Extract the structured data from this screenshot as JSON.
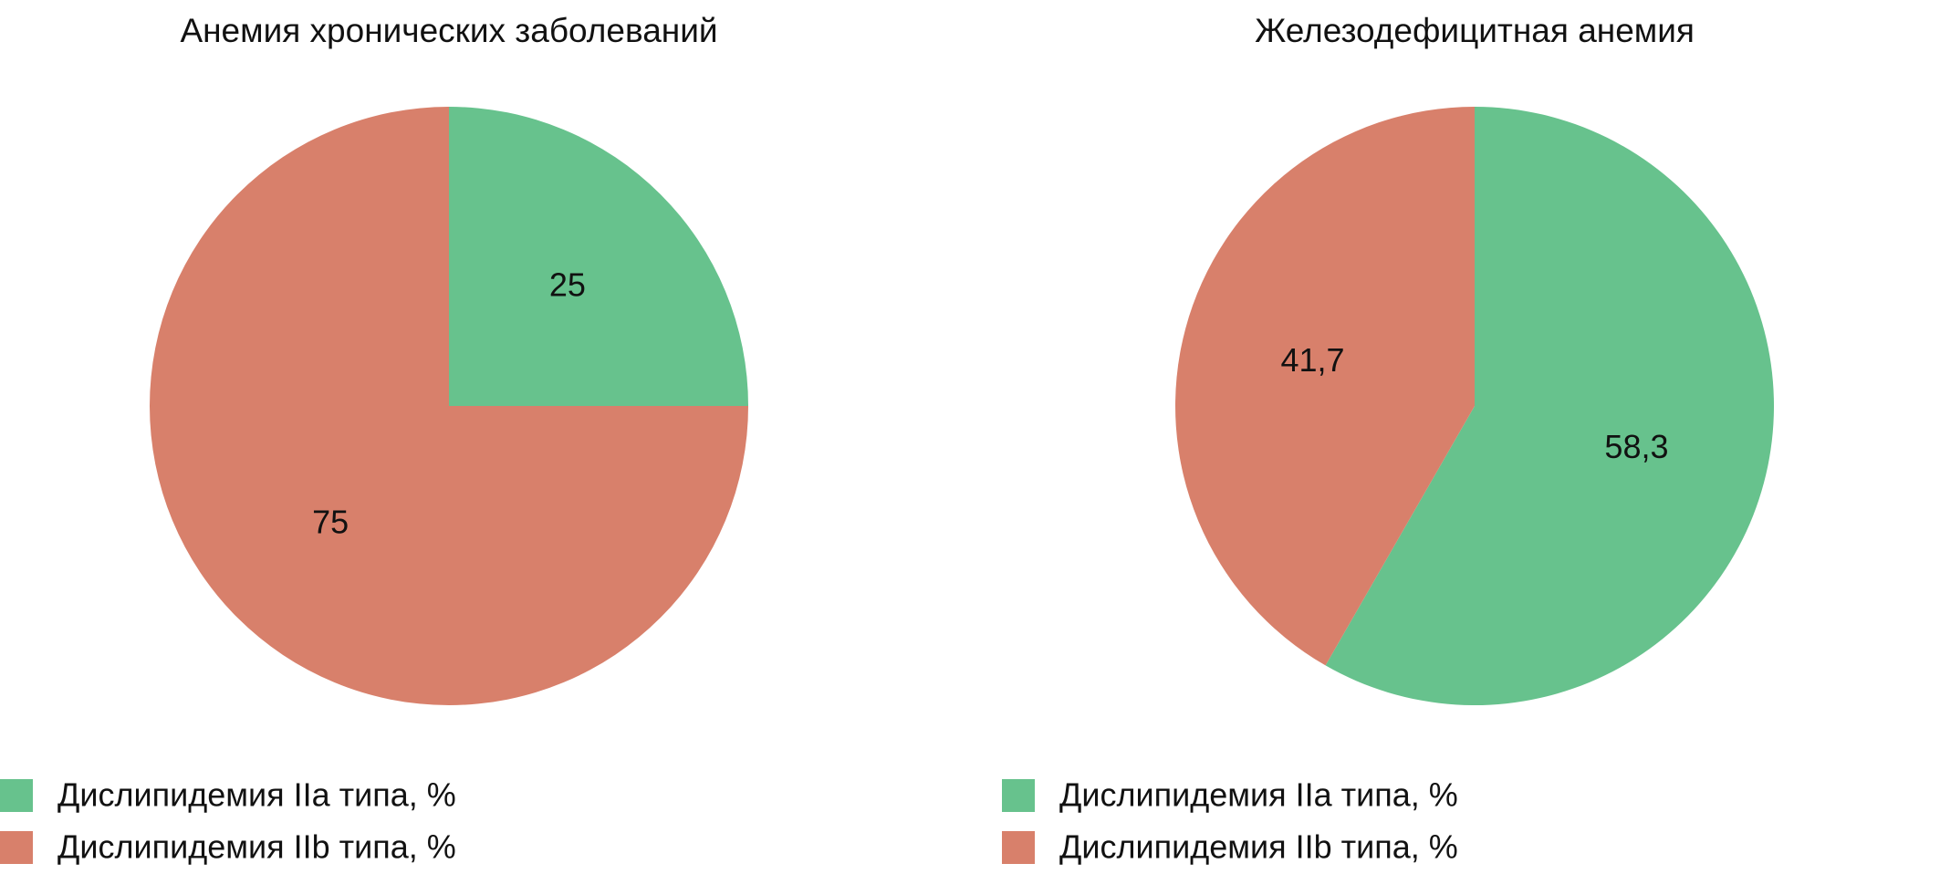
{
  "colors": {
    "type_IIa": "#67C28D",
    "type_IIb": "#D8806B"
  },
  "chart_data": [
    {
      "type": "pie",
      "title": "Анемия хронических заболеваний",
      "start_angle": "12 o'clock, clockwise",
      "slices": [
        {
          "label": "Дислипидемия IIa типа, %",
          "value": 25,
          "display": "25",
          "color": "#67C28D"
        },
        {
          "label": "Дислипидемия IIb типа, %",
          "value": 75,
          "display": "75",
          "color": "#D8806B"
        }
      ],
      "legend": [
        "Дислипидемия IIa типа, %",
        "Дислипидемия IIb типа, %"
      ],
      "legend_position": "bottom-left"
    },
    {
      "type": "pie",
      "title": "Железодефицитная анемия",
      "start_angle": "12 o'clock, clockwise",
      "slices": [
        {
          "label": "Дислипидемия IIa типа, %",
          "value": 58.3,
          "display": "58,3",
          "color": "#67C28D"
        },
        {
          "label": "Дислипидемия IIb типа, %",
          "value": 41.7,
          "display": "41,7",
          "color": "#D8806B"
        }
      ],
      "legend": [
        "Дислипидемия IIa типа, %",
        "Дислипидемия IIb типа, %"
      ],
      "legend_position": "bottom-left"
    }
  ]
}
